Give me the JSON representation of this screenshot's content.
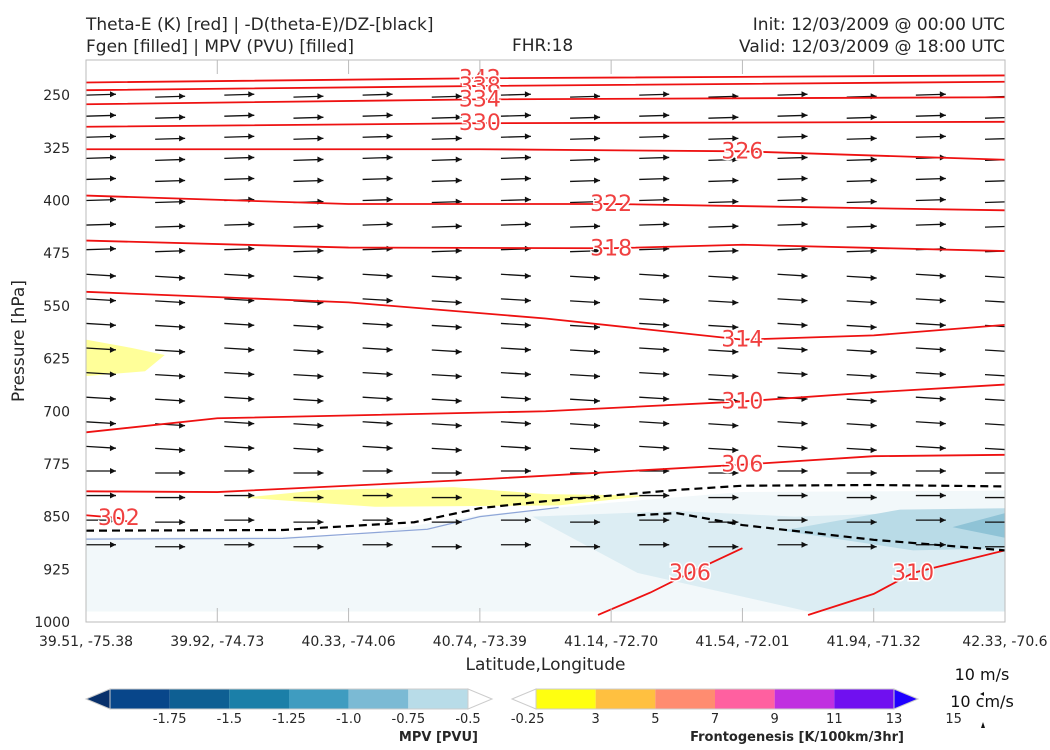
{
  "header": {
    "left_line1": "Theta-E (K) [red] | -D(theta-E)/DZ-[black]",
    "left_line2": "Fgen [filled] | MPV (PVU) [filled]",
    "fhr": "FHR:18",
    "init": "Init: 12/03/2009 @ 00:00 UTC",
    "valid": "Valid: 12/03/2009 @ 18:00 UTC"
  },
  "chart_data": {
    "type": "cross-section",
    "xlabel": "Latitude,Longitude",
    "ylabel": "Pressure [hPa]",
    "x_ticks": [
      "39.51, -75.38",
      "39.92, -74.73",
      "40.33, -74.06",
      "40.74, -73.39",
      "41.14, -72.70",
      "41.54, -72.01",
      "41.94, -71.32",
      "42.33, -70.6"
    ],
    "y_ticks": [
      250,
      325,
      400,
      475,
      550,
      625,
      700,
      775,
      850,
      925,
      1000
    ],
    "ylim": [
      1000,
      200
    ],
    "theta_e_contours": [
      {
        "label": "342",
        "points": [
          [
            0,
            232
          ],
          [
            3,
            226
          ],
          [
            7,
            222
          ]
        ]
      },
      {
        "label": "338",
        "points": [
          [
            0,
            243
          ],
          [
            3,
            237
          ],
          [
            7,
            231
          ]
        ]
      },
      {
        "label": "334",
        "points": [
          [
            0,
            263
          ],
          [
            3,
            256
          ],
          [
            7,
            253
          ]
        ]
      },
      {
        "label": "330",
        "points": [
          [
            0,
            295
          ],
          [
            3,
            290
          ],
          [
            7,
            288
          ]
        ]
      },
      {
        "label": "326",
        "points": [
          [
            0,
            327
          ],
          [
            3,
            327
          ],
          [
            5,
            330
          ],
          [
            7,
            342
          ]
        ]
      },
      {
        "label": "322",
        "points": [
          [
            0,
            393
          ],
          [
            2,
            405
          ],
          [
            4,
            405
          ],
          [
            7,
            414
          ]
        ]
      },
      {
        "label": "318",
        "points": [
          [
            0,
            457
          ],
          [
            2,
            467
          ],
          [
            4,
            468
          ],
          [
            5,
            463
          ],
          [
            7,
            472
          ]
        ]
      },
      {
        "label": "314",
        "points": [
          [
            0,
            530
          ],
          [
            2,
            545
          ],
          [
            3.5,
            568
          ],
          [
            5,
            598
          ],
          [
            6,
            592
          ],
          [
            7,
            577
          ]
        ]
      },
      {
        "label": "310",
        "points": [
          [
            0,
            730
          ],
          [
            1,
            710
          ],
          [
            3.5,
            700
          ],
          [
            5,
            686
          ],
          [
            6,
            673
          ],
          [
            7,
            662
          ]
        ]
      },
      {
        "label": "306",
        "points": [
          [
            0,
            814
          ],
          [
            1,
            815
          ],
          [
            3,
            797
          ],
          [
            5,
            776
          ],
          [
            6,
            764
          ],
          [
            7,
            762
          ]
        ]
      },
      {
        "label": "306",
        "points": [
          [
            3.9,
            990
          ],
          [
            4.3,
            958
          ],
          [
            4.6,
            930
          ],
          [
            5.0,
            895
          ]
        ]
      },
      {
        "label": "310",
        "points": [
          [
            5.5,
            990
          ],
          [
            6,
            960
          ],
          [
            6.3,
            930
          ],
          [
            7,
            898
          ]
        ]
      },
      {
        "label": "302",
        "points": [
          [
            0,
            848
          ],
          [
            0.25,
            852
          ],
          [
            0.35,
            860
          ]
        ]
      }
    ],
    "ddz_dashed": [
      {
        "points": [
          [
            0,
            870
          ],
          [
            1.5,
            869
          ],
          [
            2.5,
            858
          ],
          [
            3,
            838
          ],
          [
            3.5,
            828
          ],
          [
            4,
            820
          ],
          [
            4.5,
            812
          ],
          [
            5,
            806
          ],
          [
            6,
            805
          ],
          [
            7,
            807
          ]
        ]
      },
      {
        "points": [
          [
            4.2,
            848
          ],
          [
            4.5,
            845
          ],
          [
            5,
            862
          ],
          [
            6,
            883
          ],
          [
            7,
            898
          ]
        ]
      }
    ],
    "mpv_legend": {
      "ticks": [
        "-1.75",
        "-1.5",
        "-1.25",
        "-1.0",
        "-0.75",
        "-0.5",
        "-0.25"
      ],
      "colors": [
        "#08306b",
        "#08468a",
        "#0e5f93",
        "#1b7fa8",
        "#3f9cc0",
        "#7bbad4",
        "#b8dce8",
        "#ffffff"
      ],
      "label": "MPV [PVU]"
    },
    "fgen_legend": {
      "ticks": [
        "3",
        "5",
        "7",
        "9",
        "11",
        "13",
        "15"
      ],
      "colors": [
        "#ffffff",
        "#ffff10",
        "#ffc040",
        "#ff8c70",
        "#ff60a0",
        "#c030e0",
        "#7010f0",
        "#2000ff"
      ],
      "label": "Frontogenesis [K/100km/3hr]"
    },
    "vector_scale": {
      "label1": "10 m/s",
      "label2": "10 cm/s"
    }
  }
}
